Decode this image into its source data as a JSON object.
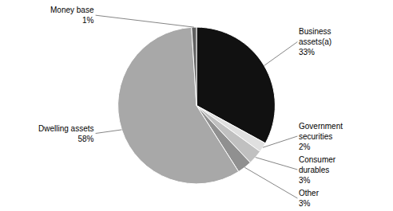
{
  "chart_data": {
    "type": "pie",
    "categories": [
      "Business\nassets(a)\n33%",
      "Government\nsecurities\n2%",
      "Consumer\ndurables\n3%",
      "Other\n3%",
      "Dwelling assets\n58%",
      "Money base\n1%"
    ],
    "values": [
      33,
      2,
      3,
      3,
      58,
      1
    ],
    "colors": [
      "#111111",
      "#e0e0e0",
      "#c0c0c0",
      "#909090",
      "#a8a8a8",
      "#606060"
    ]
  }
}
